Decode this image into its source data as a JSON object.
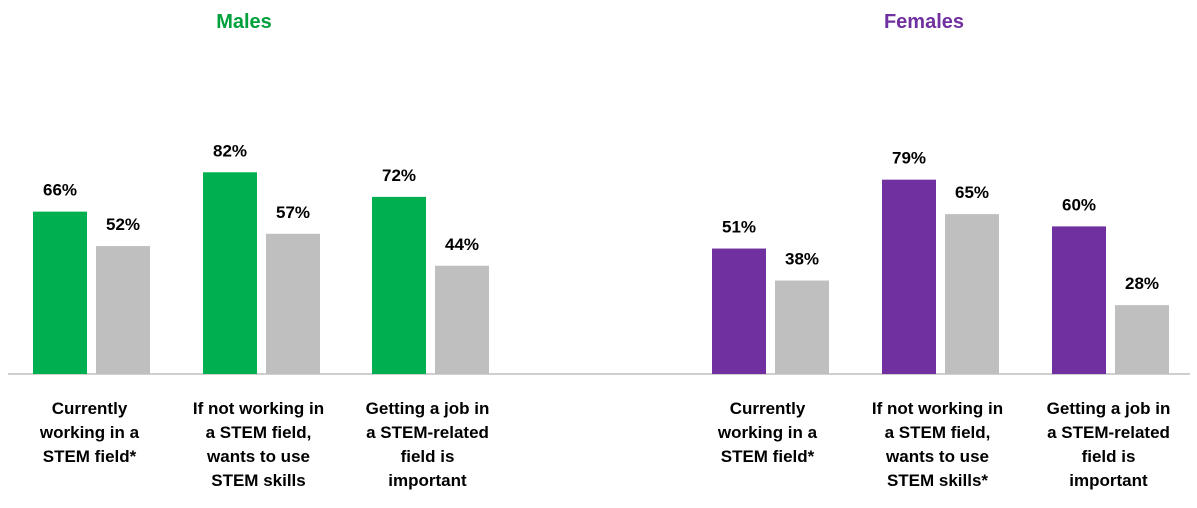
{
  "chart_data": [
    {
      "type": "bar",
      "title": "Males",
      "categories": [
        "Currently working in a STEM field*",
        "If not working in a STEM field, wants to use STEM skills",
        "Getting a job in a STEM-related field is important"
      ],
      "category_lines": [
        [
          "Currently",
          "working in a",
          "STEM field*"
        ],
        [
          "If not working in",
          "a STEM field,",
          "wants to use",
          "STEM skills"
        ],
        [
          "Getting a job in",
          "a STEM-related",
          "field is",
          "important"
        ]
      ],
      "series": [
        {
          "color": "#00b050",
          "values": [
            66,
            82,
            72
          ],
          "labels": [
            "66%",
            "82%",
            "72%"
          ]
        },
        {
          "color": "#bfbfbf",
          "values": [
            52,
            57,
            44
          ],
          "labels": [
            "52%",
            "57%",
            "44%"
          ]
        }
      ],
      "ylim": [
        0,
        100
      ],
      "title_color": "#00a03c"
    },
    {
      "type": "bar",
      "title": "Females",
      "categories": [
        "Currently working in a STEM field*",
        "If not working in a STEM field, wants to use STEM skills*",
        "Getting a job in a STEM-related field is important"
      ],
      "category_lines": [
        [
          "Currently",
          "working in a",
          "STEM field*"
        ],
        [
          "If not working in",
          "a STEM field,",
          "wants to use",
          "STEM skills*"
        ],
        [
          "Getting a job in",
          "a STEM-related",
          "field is",
          "important"
        ]
      ],
      "series": [
        {
          "color": "#7030a0",
          "values": [
            51,
            79,
            60
          ],
          "labels": [
            "51%",
            "79%",
            "60%"
          ]
        },
        {
          "color": "#bfbfbf",
          "values": [
            38,
            65,
            28
          ],
          "labels": [
            "38%",
            "65%",
            "28%"
          ]
        }
      ],
      "ylim": [
        0,
        100
      ],
      "title_color": "#7030a0"
    }
  ]
}
